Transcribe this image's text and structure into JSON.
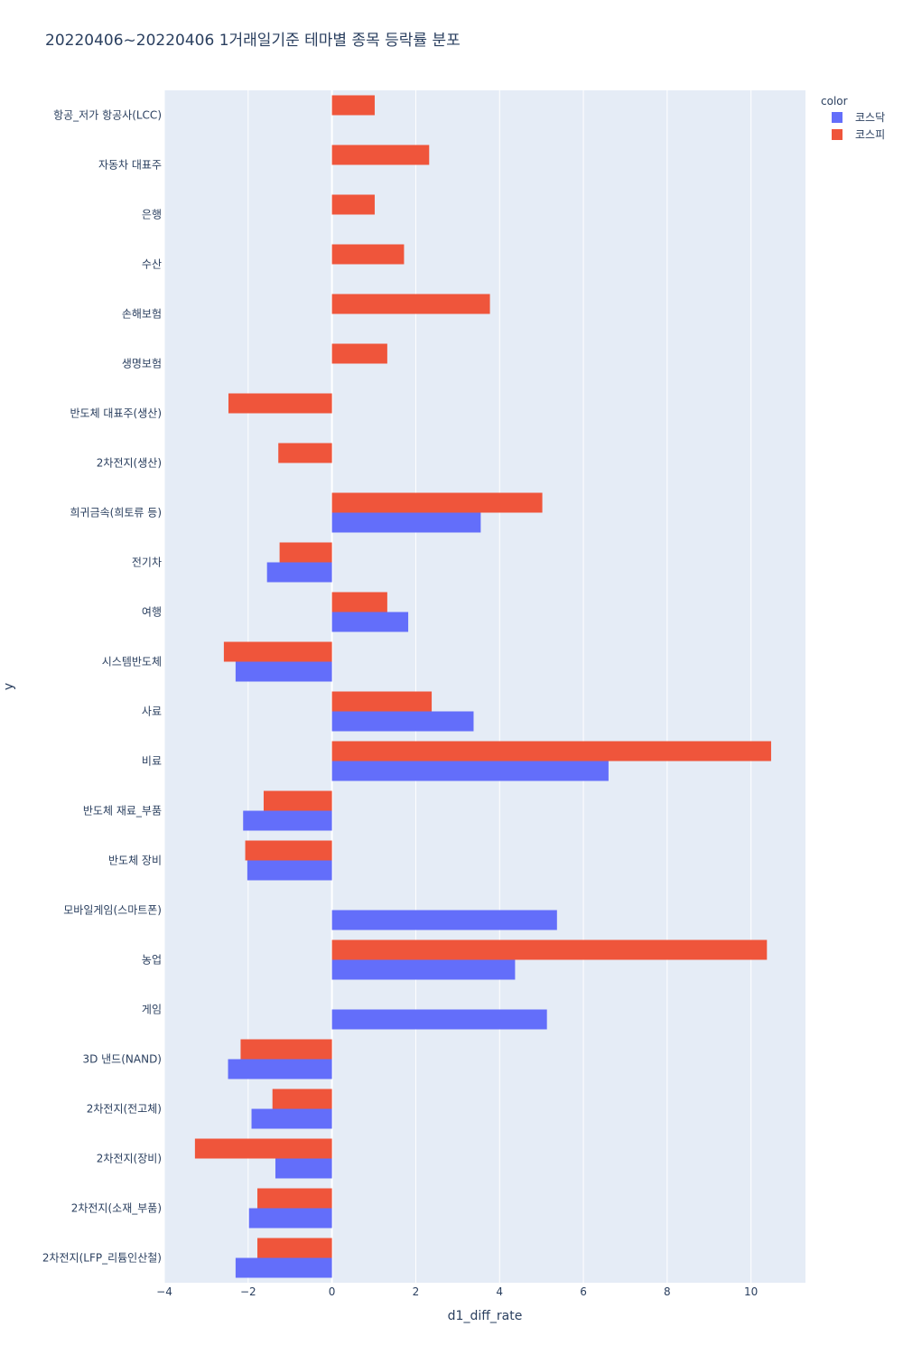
{
  "chart_data": {
    "type": "bar",
    "orientation": "horizontal",
    "title": "20220406~20220406 1거래일기준 테마별 종목 등락률 분포",
    "xlabel": "d1_diff_rate",
    "ylabel": "y",
    "xlim": [
      -4,
      11.3
    ],
    "xticks": [
      -4,
      -2,
      0,
      2,
      4,
      6,
      8,
      10
    ],
    "xtick_labels": [
      "−4",
      "−2",
      "0",
      "2",
      "4",
      "6",
      "8",
      "10"
    ],
    "legend_title": "color",
    "categories": [
      "항공_저가 항공사(LCC)",
      "자동차 대표주",
      "은행",
      "수산",
      "손해보험",
      "생명보험",
      "반도체 대표주(생산)",
      "2차전지(생산)",
      "희귀금속(희토류 등)",
      "전기차",
      "여행",
      "시스템반도체",
      "사료",
      "비료",
      "반도체 재료_부품",
      "반도체 장비",
      "모바일게임(스마트폰)",
      "농업",
      "게임",
      "3D 낸드(NAND)",
      "2차전지(전고체)",
      "2차전지(장비)",
      "2차전지(소재_부품)",
      "2차전지(LFP_리튬인산철)"
    ],
    "series": [
      {
        "name": "코스닥",
        "color": "#636efa",
        "values": [
          null,
          null,
          null,
          null,
          null,
          null,
          null,
          null,
          3.55,
          -1.55,
          1.82,
          -2.3,
          3.38,
          6.6,
          -2.12,
          -2.02,
          5.37,
          4.37,
          5.13,
          -2.48,
          -1.92,
          -1.35,
          -1.98,
          -2.3
        ]
      },
      {
        "name": "코스피",
        "color": "#ef553b",
        "values": [
          1.02,
          2.32,
          1.02,
          1.72,
          3.77,
          1.32,
          -2.47,
          -1.28,
          5.02,
          -1.25,
          1.32,
          -2.58,
          2.38,
          10.48,
          -1.63,
          -2.07,
          null,
          10.38,
          null,
          -2.18,
          -1.42,
          -3.27,
          -1.78,
          -1.78
        ]
      }
    ]
  }
}
